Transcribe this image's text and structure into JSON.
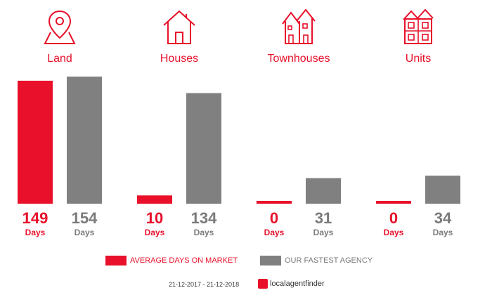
{
  "colors": {
    "accent": "#e8102a",
    "agency": "#808080",
    "label_gray": "#7a7a7a"
  },
  "categories": [
    {
      "label": "Land",
      "icon": "map-pin-icon"
    },
    {
      "label": "Houses",
      "icon": "house-icon"
    },
    {
      "label": "Townhouses",
      "icon": "townhouses-icon"
    },
    {
      "label": "Units",
      "icon": "units-icon"
    }
  ],
  "chart_data": {
    "type": "bar",
    "categories": [
      "Land",
      "Houses",
      "Townhouses",
      "Units"
    ],
    "series": [
      {
        "name": "AVERAGE DAYS ON MARKET",
        "values": [
          149,
          10,
          0,
          0
        ]
      },
      {
        "name": "OUR FASTEST AGENCY",
        "values": [
          154,
          134,
          31,
          34
        ]
      }
    ],
    "value_unit": "Days",
    "ylim": [
      0,
      160
    ],
    "grid": false,
    "legend_position": "bottom"
  },
  "legend": {
    "average_label": "AVERAGE DAYS ON MARKET",
    "agency_label": "OUR FASTEST AGENCY"
  },
  "footer": {
    "date_range": "21-12-2017 - 21-12-2018",
    "brand": "localagentfinder"
  }
}
